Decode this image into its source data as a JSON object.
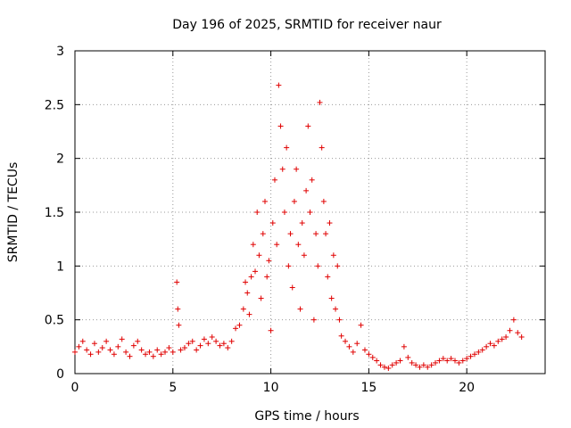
{
  "chart_data": {
    "type": "scatter",
    "title": "Day 196 of 2025, SRMTID for receiver naur",
    "xlabel": "GPS time / hours",
    "ylabel": "SRMTID / TECUs",
    "xlim": [
      0,
      24.0
    ],
    "ylim": [
      0,
      3
    ],
    "xticks": [
      0,
      5,
      10,
      15,
      20
    ],
    "yticks": [
      0,
      0.5,
      1,
      1.5,
      2,
      2.5,
      3
    ],
    "xtick_labels": [
      "0",
      "5",
      "10",
      "15",
      "20"
    ],
    "ytick_labels": [
      "0",
      "0.5",
      "1",
      "1.5",
      "2",
      "2.5",
      "3"
    ],
    "grid": true,
    "marker": "+",
    "color": "#e00000",
    "series": [
      {
        "name": "naur",
        "points": [
          [
            0.0,
            0.2
          ],
          [
            0.2,
            0.25
          ],
          [
            0.4,
            0.3
          ],
          [
            0.6,
            0.22
          ],
          [
            0.8,
            0.18
          ],
          [
            1.0,
            0.28
          ],
          [
            1.2,
            0.2
          ],
          [
            1.4,
            0.24
          ],
          [
            1.6,
            0.3
          ],
          [
            1.8,
            0.22
          ],
          [
            2.0,
            0.18
          ],
          [
            2.2,
            0.25
          ],
          [
            2.4,
            0.32
          ],
          [
            2.6,
            0.2
          ],
          [
            2.8,
            0.16
          ],
          [
            3.0,
            0.26
          ],
          [
            3.2,
            0.3
          ],
          [
            3.4,
            0.22
          ],
          [
            3.6,
            0.18
          ],
          [
            3.8,
            0.2
          ],
          [
            4.0,
            0.16
          ],
          [
            4.2,
            0.22
          ],
          [
            4.4,
            0.18
          ],
          [
            4.6,
            0.2
          ],
          [
            4.8,
            0.24
          ],
          [
            5.0,
            0.2
          ],
          [
            5.2,
            0.85
          ],
          [
            5.25,
            0.6
          ],
          [
            5.3,
            0.45
          ],
          [
            5.4,
            0.22
          ],
          [
            5.6,
            0.24
          ],
          [
            5.8,
            0.28
          ],
          [
            6.0,
            0.3
          ],
          [
            6.2,
            0.22
          ],
          [
            6.4,
            0.26
          ],
          [
            6.6,
            0.32
          ],
          [
            6.8,
            0.28
          ],
          [
            7.0,
            0.34
          ],
          [
            7.2,
            0.3
          ],
          [
            7.4,
            0.26
          ],
          [
            7.6,
            0.28
          ],
          [
            7.8,
            0.24
          ],
          [
            8.0,
            0.3
          ],
          [
            8.2,
            0.42
          ],
          [
            8.4,
            0.45
          ],
          [
            8.6,
            0.6
          ],
          [
            8.7,
            0.85
          ],
          [
            8.8,
            0.75
          ],
          [
            8.9,
            0.55
          ],
          [
            9.0,
            0.9
          ],
          [
            9.1,
            1.2
          ],
          [
            9.2,
            0.95
          ],
          [
            9.3,
            1.5
          ],
          [
            9.4,
            1.1
          ],
          [
            9.5,
            0.7
          ],
          [
            9.6,
            1.3
          ],
          [
            9.7,
            1.6
          ],
          [
            9.8,
            0.9
          ],
          [
            9.9,
            1.05
          ],
          [
            10.0,
            0.4
          ],
          [
            10.1,
            1.4
          ],
          [
            10.2,
            1.8
          ],
          [
            10.3,
            1.2
          ],
          [
            10.4,
            2.68
          ],
          [
            10.5,
            2.3
          ],
          [
            10.6,
            1.9
          ],
          [
            10.7,
            1.5
          ],
          [
            10.8,
            2.1
          ],
          [
            10.9,
            1.0
          ],
          [
            11.0,
            1.3
          ],
          [
            11.1,
            0.8
          ],
          [
            11.2,
            1.6
          ],
          [
            11.3,
            1.9
          ],
          [
            11.4,
            1.2
          ],
          [
            11.5,
            0.6
          ],
          [
            11.6,
            1.4
          ],
          [
            11.7,
            1.1
          ],
          [
            11.8,
            1.7
          ],
          [
            11.9,
            2.3
          ],
          [
            12.0,
            1.5
          ],
          [
            12.1,
            1.8
          ],
          [
            12.2,
            0.5
          ],
          [
            12.3,
            1.3
          ],
          [
            12.4,
            1.0
          ],
          [
            12.5,
            2.52
          ],
          [
            12.6,
            2.1
          ],
          [
            12.7,
            1.6
          ],
          [
            12.8,
            1.3
          ],
          [
            12.9,
            0.9
          ],
          [
            13.0,
            1.4
          ],
          [
            13.1,
            0.7
          ],
          [
            13.2,
            1.1
          ],
          [
            13.3,
            0.6
          ],
          [
            13.4,
            1.0
          ],
          [
            13.5,
            0.5
          ],
          [
            13.6,
            0.35
          ],
          [
            13.8,
            0.3
          ],
          [
            14.0,
            0.25
          ],
          [
            14.2,
            0.2
          ],
          [
            14.4,
            0.28
          ],
          [
            14.6,
            0.45
          ],
          [
            14.8,
            0.22
          ],
          [
            15.0,
            0.18
          ],
          [
            15.2,
            0.15
          ],
          [
            15.4,
            0.12
          ],
          [
            15.6,
            0.08
          ],
          [
            15.8,
            0.06
          ],
          [
            16.0,
            0.05
          ],
          [
            16.2,
            0.08
          ],
          [
            16.4,
            0.1
          ],
          [
            16.6,
            0.12
          ],
          [
            16.8,
            0.25
          ],
          [
            17.0,
            0.15
          ],
          [
            17.2,
            0.1
          ],
          [
            17.4,
            0.08
          ],
          [
            17.6,
            0.06
          ],
          [
            17.8,
            0.08
          ],
          [
            18.0,
            0.06
          ],
          [
            18.2,
            0.08
          ],
          [
            18.4,
            0.1
          ],
          [
            18.6,
            0.12
          ],
          [
            18.8,
            0.14
          ],
          [
            19.0,
            0.12
          ],
          [
            19.2,
            0.14
          ],
          [
            19.4,
            0.12
          ],
          [
            19.6,
            0.1
          ],
          [
            19.8,
            0.12
          ],
          [
            20.0,
            0.14
          ],
          [
            20.2,
            0.16
          ],
          [
            20.4,
            0.18
          ],
          [
            20.6,
            0.2
          ],
          [
            20.8,
            0.22
          ],
          [
            21.0,
            0.25
          ],
          [
            21.2,
            0.28
          ],
          [
            21.4,
            0.26
          ],
          [
            21.6,
            0.3
          ],
          [
            21.8,
            0.32
          ],
          [
            22.0,
            0.34
          ],
          [
            22.2,
            0.4
          ],
          [
            22.4,
            0.5
          ],
          [
            22.6,
            0.38
          ],
          [
            22.8,
            0.34
          ]
        ]
      }
    ]
  }
}
